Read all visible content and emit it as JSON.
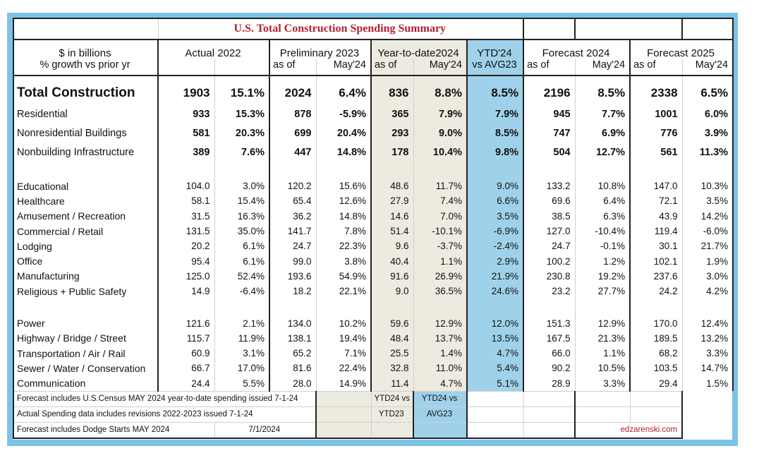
{
  "title": "U.S. Total Construction Spending Summary",
  "header": {
    "left_line1": "$ in billions",
    "left_line2": "% growth vs prior yr",
    "actual": "Actual 2022",
    "prelim": "Preliminary 2023",
    "prelim_asof": "as of",
    "prelim_date": "May'24",
    "ytd": "Year-to-date2024",
    "ytd_asof": "as of",
    "ytd_date": "May'24",
    "vs_line1": "YTD'24",
    "vs_line2": "vs AVG23",
    "f24": "Forecast 2024",
    "f24_asof": "as of",
    "f24_date": "May'24",
    "f25": "Forecast 2025",
    "f25_asof": "as of",
    "f25_date": "May'24"
  },
  "top_rows": [
    {
      "label": "Total Construction",
      "a": "1903",
      "ag": "15.1%",
      "p": "2024",
      "pg": "6.4%",
      "y": "836",
      "yg": "8.8%",
      "v": "8.5%",
      "f4": "2196",
      "f4g": "8.5%",
      "f5": "2338",
      "f5g": "6.5%"
    },
    {
      "label": "Residential",
      "a": "933",
      "ag": "15.3%",
      "p": "878",
      "pg": "-5.9%",
      "y": "365",
      "yg": "7.9%",
      "v": "7.9%",
      "f4": "945",
      "f4g": "7.7%",
      "f5": "1001",
      "f5g": "6.0%"
    },
    {
      "label": "Nonresidential Buildings",
      "a": "581",
      "ag": "20.3%",
      "p": "699",
      "pg": "20.4%",
      "y": "293",
      "yg": "9.0%",
      "v": "8.5%",
      "f4": "747",
      "f4g": "6.9%",
      "f5": "776",
      "f5g": "3.9%"
    },
    {
      "label": "Nonbuilding Infrastructure",
      "a": "389",
      "ag": "7.6%",
      "p": "447",
      "pg": "14.8%",
      "y": "178",
      "yg": "10.4%",
      "v": "9.8%",
      "f4": "504",
      "f4g": "12.7%",
      "f5": "561",
      "f5g": "11.3%"
    }
  ],
  "nonres_rows": [
    {
      "label": "Educational",
      "a": "104.0",
      "ag": "3.0%",
      "p": "120.2",
      "pg": "15.6%",
      "y": "48.6",
      "yg": "11.7%",
      "v": "9.0%",
      "f4": "133.2",
      "f4g": "10.8%",
      "f5": "147.0",
      "f5g": "10.3%"
    },
    {
      "label": "Healthcare",
      "a": "58.1",
      "ag": "15.4%",
      "p": "65.4",
      "pg": "12.6%",
      "y": "27.9",
      "yg": "7.4%",
      "v": "6.6%",
      "f4": "69.6",
      "f4g": "6.4%",
      "f5": "72.1",
      "f5g": "3.5%"
    },
    {
      "label": "Amusement / Recreation",
      "a": "31.5",
      "ag": "16.3%",
      "p": "36.2",
      "pg": "14.8%",
      "y": "14.6",
      "yg": "7.0%",
      "v": "3.5%",
      "f4": "38.5",
      "f4g": "6.3%",
      "f5": "43.9",
      "f5g": "14.2%"
    },
    {
      "label": "Commercial / Retail",
      "a": "131.5",
      "ag": "35.0%",
      "p": "141.7",
      "pg": "7.8%",
      "y": "51.4",
      "yg": "-10.1%",
      "v": "-6.9%",
      "f4": "127.0",
      "f4g": "-10.4%",
      "f5": "119.4",
      "f5g": "-6.0%"
    },
    {
      "label": "Lodging",
      "a": "20.2",
      "ag": "6.1%",
      "p": "24.7",
      "pg": "22.3%",
      "y": "9.6",
      "yg": "-3.7%",
      "v": "-2.4%",
      "f4": "24.7",
      "f4g": "-0.1%",
      "f5": "30.1",
      "f5g": "21.7%"
    },
    {
      "label": "Office",
      "a": "95.4",
      "ag": "6.1%",
      "p": "99.0",
      "pg": "3.8%",
      "y": "40.4",
      "yg": "1.1%",
      "v": "2.9%",
      "f4": "100.2",
      "f4g": "1.2%",
      "f5": "102.1",
      "f5g": "1.9%"
    },
    {
      "label": "Manufacturing",
      "a": "125.0",
      "ag": "52.4%",
      "p": "193.6",
      "pg": "54.9%",
      "y": "91.6",
      "yg": "26.9%",
      "v": "21.9%",
      "f4": "230.8",
      "f4g": "19.2%",
      "f5": "237.6",
      "f5g": "3.0%"
    },
    {
      "label": "Religious + Public Safety",
      "a": "14.9",
      "ag": "-6.4%",
      "p": "18.2",
      "pg": "22.1%",
      "y": "9.0",
      "yg": "36.5%",
      "v": "24.6%",
      "f4": "23.2",
      "f4g": "27.7%",
      "f5": "24.2",
      "f5g": "4.2%"
    }
  ],
  "infra_rows": [
    {
      "label": "Power",
      "a": "121.6",
      "ag": "2.1%",
      "p": "134.0",
      "pg": "10.2%",
      "y": "59.6",
      "yg": "12.9%",
      "v": "12.0%",
      "f4": "151.3",
      "f4g": "12.9%",
      "f5": "170.0",
      "f5g": "12.4%"
    },
    {
      "label": "Highway / Bridge / Street",
      "a": "115.7",
      "ag": "11.9%",
      "p": "138.1",
      "pg": "19.4%",
      "y": "48.4",
      "yg": "13.7%",
      "v": "13.5%",
      "f4": "167.5",
      "f4g": "21.3%",
      "f5": "189.5",
      "f5g": "13.2%"
    },
    {
      "label": "Transportation / Air / Rail",
      "a": "60.9",
      "ag": "3.1%",
      "p": "65.2",
      "pg": "7.1%",
      "y": "25.5",
      "yg": "1.4%",
      "v": "4.7%",
      "f4": "66.0",
      "f4g": "1.1%",
      "f5": "68.2",
      "f5g": "3.3%"
    },
    {
      "label": "Sewer / Water / Conservation",
      "a": "66.7",
      "ag": "17.0%",
      "p": "81.6",
      "pg": "22.4%",
      "y": "32.8",
      "yg": "11.0%",
      "v": "5.4%",
      "f4": "90.2",
      "f4g": "10.5%",
      "f5": "103.5",
      "f5g": "14.7%"
    },
    {
      "label": "Communication",
      "a": "24.4",
      "ag": "5.5%",
      "p": "28.0",
      "pg": "14.9%",
      "y": "11.4",
      "yg": "4.7%",
      "v": "5.1%",
      "f4": "28.9",
      "f4g": "3.3%",
      "f5": "29.4",
      "f5g": "1.5%"
    }
  ],
  "footer": {
    "note1": "Forecast includes U.S.Census MAY 2024 year-to-date spending issued 7-1-24",
    "note2": "Actual Spending data includes revisions 2022-2023 issued 7-1-24",
    "note3": "Forecast includes Dodge Starts MAY 2024",
    "note3_date": "7/1/2024",
    "ytd_l1": "YTD24 vs",
    "ytd_l2": "YTD23",
    "vs_l1": "YTD24 vs",
    "vs_l2": "AVG23",
    "brand": "edzarenski.com"
  },
  "colors": {
    "title": "#b2222d",
    "ytd_shade": "#edeae0",
    "vs_shade": "#9fd2ea",
    "frame": "#7cc3e6"
  }
}
